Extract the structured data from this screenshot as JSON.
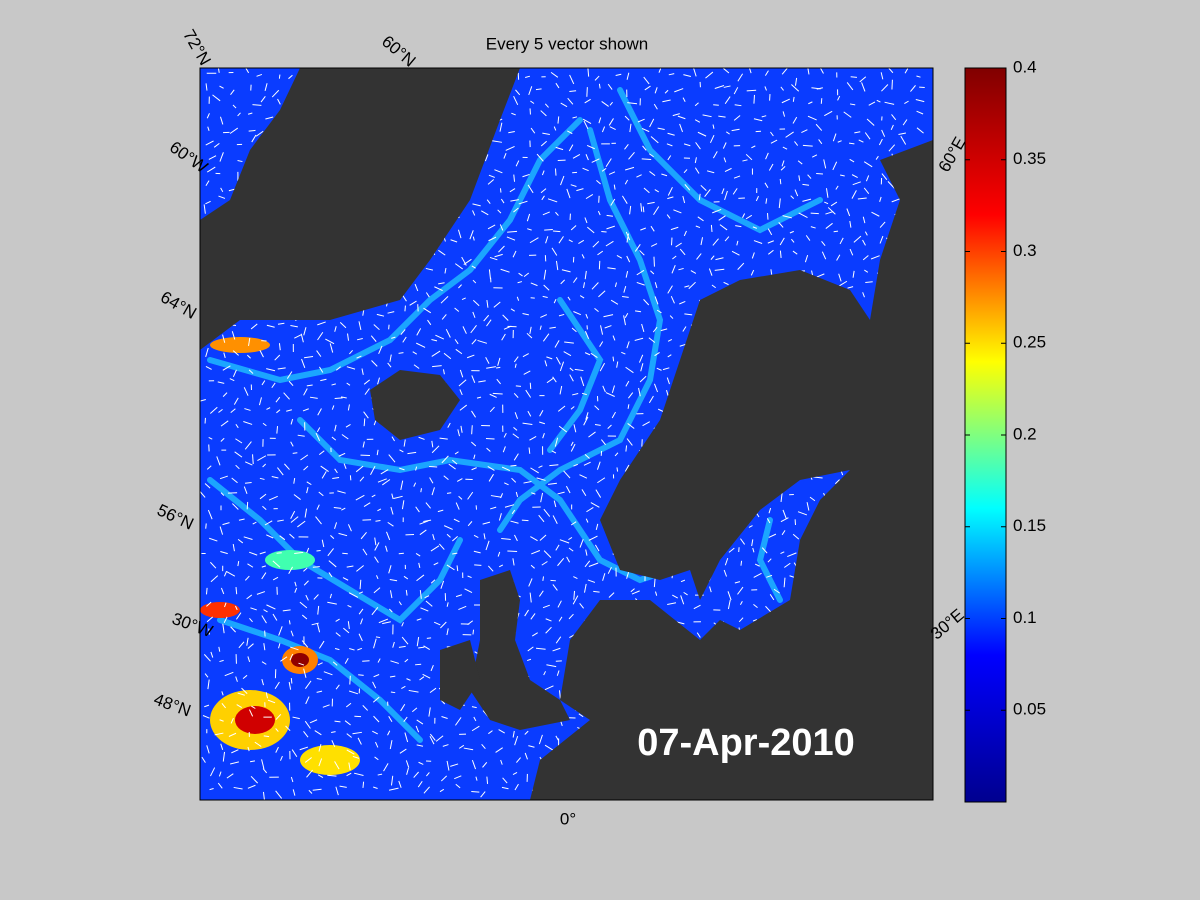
{
  "title": "Every 5 vector shown",
  "date": "07-Apr-2010",
  "grid_labels": [
    "72°N",
    "60°N",
    "60°W",
    "64°N",
    "56°N",
    "30°W",
    "48°N",
    "0°",
    "60°E",
    "30°E"
  ],
  "colorbar": {
    "lim": [
      0,
      0.4
    ],
    "ticks": [
      0.05,
      0.1,
      0.15,
      0.2,
      0.25,
      0.3,
      0.35,
      0.4
    ],
    "colors": [
      "#00008f",
      "#0000ff",
      "#00ffff",
      "#ffff00",
      "#ff0000",
      "#800000"
    ]
  }
}
